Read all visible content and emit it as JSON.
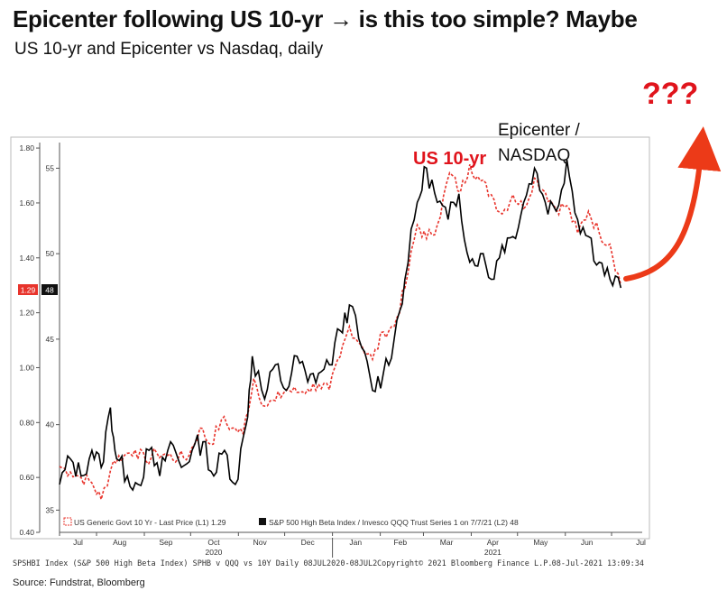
{
  "title": "Epicenter following US 10-yr → is this too simple? Maybe",
  "subtitle": "US 10-yr and Epicenter vs Nasdaq, daily",
  "annotations": {
    "us10yr": "US 10-yr",
    "epicenter_line1": "Epicenter /",
    "epicenter_line2": "NASDAQ",
    "question": "???"
  },
  "legend": {
    "us10yr": "US Generic Govt 10 Yr - Last Price (L1) 1.29",
    "epicenter": "S&P 500 High Beta Index / Invesco QQQ Trust Series 1 on 7/7/21 (L2) 48"
  },
  "footer": {
    "left": "SPSHBI Index (S&P 500 High Beta Index) SPHB v QQQ vs 10Y Daily 08JUL2020-08JUL2",
    "middle": "Copyright© 2021 Bloomberg Finance L.P.",
    "right": "08-Jul-2021 13:09:34"
  },
  "source": "Source: Fundstrat, Bloomberg",
  "current_labels": {
    "left": "1.29",
    "right": "48"
  },
  "colors": {
    "us10yr": "#e8342c",
    "epicenter": "#000000",
    "arrow": "#ec3a18",
    "question": "#e0141c"
  },
  "chart_data": {
    "type": "line",
    "title": "",
    "x_axis": {
      "months": [
        "Jul",
        "Aug",
        "Sep",
        "Oct",
        "Nov",
        "Dec",
        "Jan",
        "Feb",
        "Mar",
        "Apr",
        "May",
        "Jun",
        "Jul"
      ],
      "year_labels": [
        {
          "label": "2020",
          "month": "Oct"
        },
        {
          "label": "2021",
          "month": "Apr"
        }
      ],
      "range": [
        "2020-07-08",
        "2021-07-08"
      ]
    },
    "y_left": {
      "ticks": [
        "0.40",
        "0.60",
        "0.80",
        "1.00",
        "1.20",
        "1.40",
        "1.60",
        "1.80"
      ],
      "range": [
        0.4,
        1.82
      ]
    },
    "y_right": {
      "ticks": [
        "35",
        "40",
        "45",
        "50",
        "55"
      ],
      "range": [
        33.7,
        56.5
      ]
    },
    "series": [
      {
        "name": "US Generic Govt 10 Yr - Last Price (L1)",
        "axis": "left",
        "style": "dashed",
        "last": 1.29,
        "points": [
          [
            "2020-07-08",
            0.64
          ],
          [
            "2020-07-15",
            0.62
          ],
          [
            "2020-07-22",
            0.6
          ],
          [
            "2020-07-29",
            0.58
          ],
          [
            "2020-08-04",
            0.52
          ],
          [
            "2020-08-12",
            0.66
          ],
          [
            "2020-08-19",
            0.68
          ],
          [
            "2020-08-26",
            0.7
          ],
          [
            "2020-09-02",
            0.66
          ],
          [
            "2020-09-09",
            0.69
          ],
          [
            "2020-09-16",
            0.68
          ],
          [
            "2020-09-23",
            0.67
          ],
          [
            "2020-09-30",
            0.68
          ],
          [
            "2020-10-07",
            0.78
          ],
          [
            "2020-10-14",
            0.72
          ],
          [
            "2020-10-21",
            0.81
          ],
          [
            "2020-10-28",
            0.78
          ],
          [
            "2020-11-04",
            0.76
          ],
          [
            "2020-11-11",
            0.96
          ],
          [
            "2020-11-18",
            0.86
          ],
          [
            "2020-11-25",
            0.88
          ],
          [
            "2020-12-02",
            0.92
          ],
          [
            "2020-12-09",
            0.91
          ],
          [
            "2020-12-16",
            0.92
          ],
          [
            "2020-12-23",
            0.94
          ],
          [
            "2020-12-30",
            0.92
          ],
          [
            "2021-01-06",
            1.04
          ],
          [
            "2021-01-12",
            1.15
          ],
          [
            "2021-01-20",
            1.08
          ],
          [
            "2021-01-27",
            1.03
          ],
          [
            "2021-02-03",
            1.13
          ],
          [
            "2021-02-10",
            1.15
          ],
          [
            "2021-02-17",
            1.29
          ],
          [
            "2021-02-25",
            1.52
          ],
          [
            "2021-03-03",
            1.47
          ],
          [
            "2021-03-10",
            1.52
          ],
          [
            "2021-03-18",
            1.71
          ],
          [
            "2021-03-25",
            1.64
          ],
          [
            "2021-03-31",
            1.74
          ],
          [
            "2021-04-07",
            1.68
          ],
          [
            "2021-04-14",
            1.63
          ],
          [
            "2021-04-21",
            1.56
          ],
          [
            "2021-04-28",
            1.63
          ],
          [
            "2021-05-05",
            1.58
          ],
          [
            "2021-05-12",
            1.69
          ],
          [
            "2021-05-19",
            1.64
          ],
          [
            "2021-05-26",
            1.58
          ],
          [
            "2021-06-02",
            1.59
          ],
          [
            "2021-06-09",
            1.49
          ],
          [
            "2021-06-16",
            1.57
          ],
          [
            "2021-06-23",
            1.49
          ],
          [
            "2021-06-30",
            1.45
          ],
          [
            "2021-07-07",
            1.3
          ]
        ]
      },
      {
        "name": "S&P 500 High Beta Index / Invesco QQQ Trust Series 1 on 7/7/21 (L2)",
        "axis": "right",
        "style": "solid",
        "last": 48,
        "points": [
          [
            "2020-07-08",
            36.5
          ],
          [
            "2020-07-15",
            38.0
          ],
          [
            "2020-07-22",
            37.0
          ],
          [
            "2020-07-29",
            38.5
          ],
          [
            "2020-08-04",
            37.5
          ],
          [
            "2020-08-10",
            41.0
          ],
          [
            "2020-08-14",
            38.0
          ],
          [
            "2020-08-21",
            37.0
          ],
          [
            "2020-08-28",
            36.5
          ],
          [
            "2020-09-04",
            38.5
          ],
          [
            "2020-09-11",
            37.0
          ],
          [
            "2020-09-18",
            39.0
          ],
          [
            "2020-09-25",
            37.5
          ],
          [
            "2020-10-02",
            38.5
          ],
          [
            "2020-10-09",
            39.0
          ],
          [
            "2020-10-16",
            37.0
          ],
          [
            "2020-10-23",
            38.5
          ],
          [
            "2020-10-30",
            36.5
          ],
          [
            "2020-11-06",
            40.0
          ],
          [
            "2020-11-10",
            44.0
          ],
          [
            "2020-11-18",
            41.5
          ],
          [
            "2020-11-25",
            43.5
          ],
          [
            "2020-12-02",
            42.0
          ],
          [
            "2020-12-09",
            44.0
          ],
          [
            "2020-12-16",
            42.5
          ],
          [
            "2020-12-23",
            43.0
          ],
          [
            "2020-12-30",
            43.5
          ],
          [
            "2021-01-06",
            45.5
          ],
          [
            "2021-01-12",
            47.0
          ],
          [
            "2021-01-20",
            44.5
          ],
          [
            "2021-01-27",
            42.0
          ],
          [
            "2021-02-03",
            43.0
          ],
          [
            "2021-02-10",
            45.0
          ],
          [
            "2021-02-17",
            48.5
          ],
          [
            "2021-02-25",
            53.0
          ],
          [
            "2021-03-03",
            55.0
          ],
          [
            "2021-03-10",
            53.0
          ],
          [
            "2021-03-17",
            52.0
          ],
          [
            "2021-03-24",
            53.5
          ],
          [
            "2021-03-31",
            49.5
          ],
          [
            "2021-04-07",
            50.0
          ],
          [
            "2021-04-14",
            48.5
          ],
          [
            "2021-04-21",
            50.5
          ],
          [
            "2021-04-28",
            51.0
          ],
          [
            "2021-05-05",
            53.0
          ],
          [
            "2021-05-12",
            55.0
          ],
          [
            "2021-05-19",
            53.0
          ],
          [
            "2021-05-26",
            52.5
          ],
          [
            "2021-06-02",
            55.5
          ],
          [
            "2021-06-09",
            52.0
          ],
          [
            "2021-06-16",
            51.0
          ],
          [
            "2021-06-23",
            49.5
          ],
          [
            "2021-06-30",
            48.5
          ],
          [
            "2021-07-07",
            48.0
          ]
        ]
      }
    ]
  }
}
